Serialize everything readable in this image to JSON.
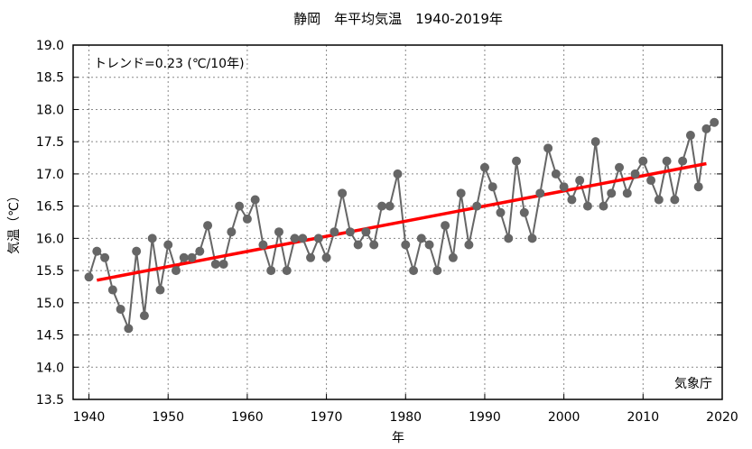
{
  "chart_data": {
    "type": "line",
    "title": "静岡　年平均気温　1940-2019年",
    "xlabel": "年",
    "ylabel": "気温（℃）",
    "annotation": "トレンド=0.23 (℃/10年)",
    "source": "気象庁",
    "xlim": [
      1938,
      2020
    ],
    "ylim": [
      13.5,
      19.0
    ],
    "xticks": [
      1940,
      1950,
      1960,
      1970,
      1980,
      1990,
      2000,
      2010,
      2020
    ],
    "yticks": [
      13.5,
      14.0,
      14.5,
      15.0,
      15.5,
      16.0,
      16.5,
      17.0,
      17.5,
      18.0,
      18.5,
      19.0
    ],
    "grid": true,
    "colors": {
      "series": "#666666",
      "trend": "#ff0000"
    },
    "series": [
      {
        "name": "年平均気温",
        "x": [
          1940,
          1941,
          1942,
          1943,
          1944,
          1945,
          1946,
          1947,
          1948,
          1949,
          1950,
          1951,
          1952,
          1953,
          1954,
          1955,
          1956,
          1957,
          1958,
          1959,
          1960,
          1961,
          1962,
          1963,
          1964,
          1965,
          1966,
          1967,
          1968,
          1969,
          1970,
          1971,
          1972,
          1973,
          1974,
          1975,
          1976,
          1977,
          1978,
          1979,
          1980,
          1981,
          1982,
          1983,
          1984,
          1985,
          1986,
          1987,
          1988,
          1989,
          1990,
          1991,
          1992,
          1993,
          1994,
          1995,
          1996,
          1997,
          1998,
          1999,
          2000,
          2001,
          2002,
          2003,
          2004,
          2005,
          2006,
          2007,
          2008,
          2009,
          2010,
          2011,
          2012,
          2013,
          2014,
          2015,
          2016,
          2017,
          2018,
          2019
        ],
        "values": [
          15.4,
          15.8,
          15.7,
          15.2,
          14.9,
          14.6,
          15.8,
          14.8,
          16.0,
          15.2,
          15.9,
          15.5,
          15.7,
          15.7,
          15.8,
          16.2,
          15.6,
          15.6,
          16.1,
          16.5,
          16.3,
          16.6,
          15.9,
          15.5,
          16.1,
          15.5,
          16.0,
          16.0,
          15.7,
          16.0,
          15.7,
          16.1,
          16.7,
          16.1,
          15.9,
          16.1,
          15.9,
          16.5,
          16.5,
          17.0,
          15.9,
          15.5,
          16.0,
          15.9,
          15.5,
          16.2,
          15.7,
          16.7,
          15.9,
          16.5,
          17.1,
          16.8,
          16.4,
          16.0,
          17.2,
          16.4,
          16.0,
          16.7,
          17.4,
          17.0,
          16.8,
          16.6,
          16.9,
          16.5,
          17.5,
          16.5,
          16.7,
          17.1,
          16.7,
          17.0,
          17.2,
          16.9,
          16.6,
          17.2,
          16.6,
          17.2,
          17.6,
          16.8,
          17.7,
          17.8
        ]
      }
    ],
    "trend": {
      "x": [
        1941,
        2018
      ],
      "values": [
        15.35,
        17.16
      ]
    }
  }
}
